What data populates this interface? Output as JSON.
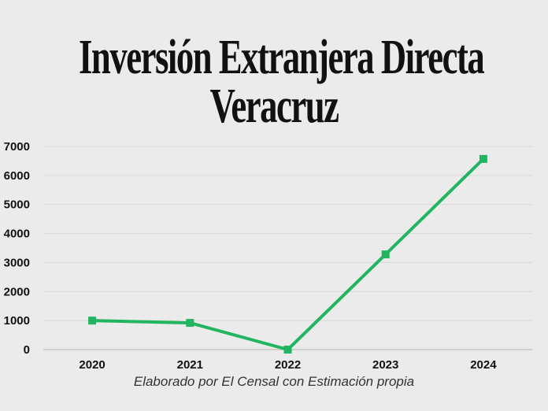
{
  "title_lines": [
    "Inversión Extranjera Directa",
    "Veracruz"
  ],
  "caption": "Elaborado por El Censal con Estimación propia",
  "chart_data": {
    "type": "line",
    "title": "Inversión Extranjera Directa Veracruz",
    "categories": [
      "2020",
      "2021",
      "2022",
      "2023",
      "2024"
    ],
    "series": [
      {
        "values": [
          1000,
          920,
          0,
          3280,
          6570
        ]
      }
    ],
    "yticks": [
      "0",
      "1000",
      "2000",
      "3000",
      "4000",
      "5000",
      "6000",
      "7000"
    ],
    "ylim": [
      0,
      7000
    ],
    "grid": true,
    "legend": "none",
    "line_color": "#22b55f",
    "xlabel": "",
    "ylabel": ""
  }
}
